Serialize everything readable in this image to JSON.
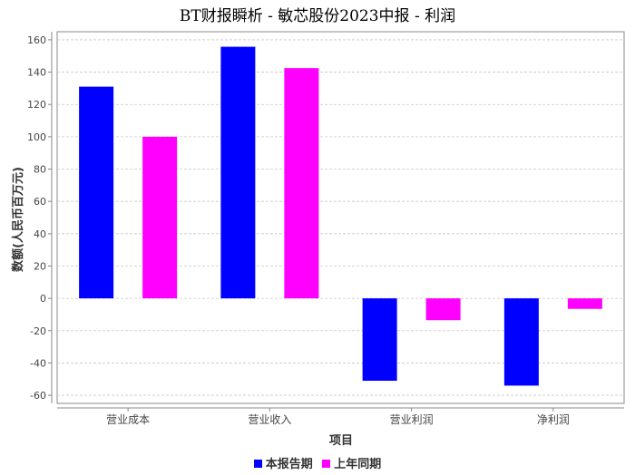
{
  "chart_data": {
    "type": "bar",
    "title": "BT财报瞬析 - 敏芯股份2023中报 - 利润",
    "xlabel": "项目",
    "ylabel": "数额(人民币百万元)",
    "categories": [
      "营业成本",
      "营业收入",
      "营业利润",
      "净利润"
    ],
    "series": [
      {
        "name": "本报告期",
        "color": "#0000ff",
        "values": [
          131,
          155.7,
          -51,
          -54
        ]
      },
      {
        "name": "上年同期",
        "color": "#ff00ff",
        "values": [
          100,
          142.5,
          -13.5,
          -6.5
        ]
      }
    ],
    "ylim": [
      -65,
      165
    ],
    "yticks": [
      -60,
      -40,
      -20,
      0,
      20,
      40,
      60,
      80,
      100,
      120,
      140,
      160
    ],
    "grid": true,
    "legend_position": "bottom"
  }
}
